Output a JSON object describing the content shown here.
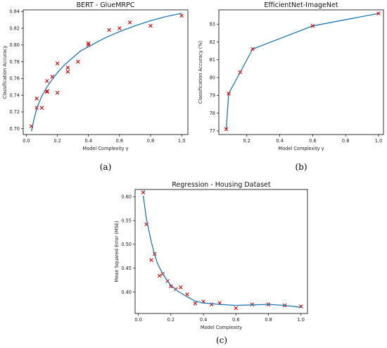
{
  "chart_data": [
    {
      "type": "scatter",
      "panel_label": "(a)",
      "title": "BERT - GlueMRPC",
      "xlabel": "Model Complexity γ",
      "ylabel": "Classification Accuracy",
      "xlim": [
        -0.02,
        1.04
      ],
      "ylim": [
        0.693,
        0.842
      ],
      "xticks": [
        "0.0",
        "0.2",
        "0.4",
        "0.6",
        "0.8",
        "1.0"
      ],
      "yticks": [
        "0.70",
        "0.72",
        "0.74",
        "0.76",
        "0.78",
        "0.80",
        "0.82",
        "0.84"
      ],
      "grid": false,
      "series": [
        {
          "marker": "x",
          "color": "#e00000",
          "points": [
            [
              0.033,
              0.703
            ],
            [
              0.067,
              0.725
            ],
            [
              0.067,
              0.736
            ],
            [
              0.1,
              0.725
            ],
            [
              0.133,
              0.744
            ],
            [
              0.133,
              0.745
            ],
            [
              0.133,
              0.757
            ],
            [
              0.167,
              0.762
            ],
            [
              0.2,
              0.743
            ],
            [
              0.2,
              0.778
            ],
            [
              0.267,
              0.768
            ],
            [
              0.267,
              0.773
            ],
            [
              0.333,
              0.78
            ],
            [
              0.4,
              0.8
            ],
            [
              0.4,
              0.802
            ],
            [
              0.533,
              0.818
            ],
            [
              0.6,
              0.82
            ],
            [
              0.667,
              0.827
            ],
            [
              0.8,
              0.823
            ],
            [
              1.0,
              0.835
            ]
          ]
        },
        {
          "line": true,
          "color": "#1f77b4",
          "points": [
            [
              0.033,
              0.697
            ],
            [
              0.05,
              0.712
            ],
            [
              0.07,
              0.726
            ],
            [
              0.1,
              0.739
            ],
            [
              0.133,
              0.75
            ],
            [
              0.167,
              0.759
            ],
            [
              0.2,
              0.767
            ],
            [
              0.25,
              0.777
            ],
            [
              0.3,
              0.785
            ],
            [
              0.35,
              0.793
            ],
            [
              0.4,
              0.798
            ],
            [
              0.5,
              0.808
            ],
            [
              0.6,
              0.816
            ],
            [
              0.7,
              0.823
            ],
            [
              0.8,
              0.829
            ],
            [
              0.9,
              0.834
            ],
            [
              1.0,
              0.838
            ]
          ]
        }
      ]
    },
    {
      "type": "line",
      "panel_label": "(b)",
      "title": "EfficientNet-ImageNet",
      "xlabel": "Model Complexity γ",
      "ylabel": "Classification Accuracy (%)",
      "xlim": [
        0.03,
        1.03
      ],
      "ylim": [
        76.8,
        83.8
      ],
      "xticks": [
        "0.2",
        "0.4",
        "0.6",
        "0.8",
        "1.0"
      ],
      "yticks": [
        "77",
        "78",
        "79",
        "80",
        "81",
        "82",
        "83"
      ],
      "grid": false,
      "series": [
        {
          "line": true,
          "marker": "x",
          "color": "#1f77b4",
          "marker_color": "#e00000",
          "points": [
            [
              0.075,
              77.1
            ],
            [
              0.09,
              79.1
            ],
            [
              0.16,
              80.3
            ],
            [
              0.235,
              81.6
            ],
            [
              0.6,
              82.9
            ],
            [
              1.0,
              83.6
            ]
          ]
        }
      ]
    },
    {
      "type": "scatter",
      "panel_label": "(c)",
      "title": "Regression - Housing Dataset",
      "xlabel": "Model Complexity",
      "ylabel": "Mean Squared Error (MSE)",
      "xlim": [
        -0.02,
        1.04
      ],
      "ylim": [
        0.355,
        0.615
      ],
      "xticks": [
        "0.0",
        "0.2",
        "0.4",
        "0.6",
        "0.8",
        "1.0"
      ],
      "yticks": [
        "0.40",
        "0.45",
        "0.50",
        "0.55",
        "0.60"
      ],
      "grid": false,
      "series": [
        {
          "marker": "x",
          "color": "#e00000",
          "points": [
            [
              0.03,
              0.609
            ],
            [
              0.05,
              0.542
            ],
            [
              0.08,
              0.467
            ],
            [
              0.1,
              0.48
            ],
            [
              0.13,
              0.434
            ],
            [
              0.15,
              0.438
            ],
            [
              0.18,
              0.423
            ],
            [
              0.2,
              0.412
            ],
            [
              0.23,
              0.406
            ],
            [
              0.26,
              0.41
            ],
            [
              0.3,
              0.395
            ],
            [
              0.35,
              0.376
            ],
            [
              0.4,
              0.38
            ],
            [
              0.45,
              0.374
            ],
            [
              0.5,
              0.377
            ],
            [
              0.6,
              0.366
            ],
            [
              0.7,
              0.374
            ],
            [
              0.8,
              0.374
            ],
            [
              0.9,
              0.372
            ],
            [
              1.0,
              0.37
            ]
          ]
        },
        {
          "line": true,
          "color": "#1f77b4",
          "points": [
            [
              0.03,
              0.602
            ],
            [
              0.05,
              0.552
            ],
            [
              0.08,
              0.505
            ],
            [
              0.1,
              0.478
            ],
            [
              0.12,
              0.458
            ],
            [
              0.15,
              0.438
            ],
            [
              0.18,
              0.423
            ],
            [
              0.2,
              0.414
            ],
            [
              0.25,
              0.4
            ],
            [
              0.3,
              0.39
            ],
            [
              0.35,
              0.381
            ],
            [
              0.4,
              0.377
            ],
            [
              0.5,
              0.374
            ],
            [
              0.6,
              0.372
            ],
            [
              0.7,
              0.373
            ],
            [
              0.8,
              0.374
            ],
            [
              0.9,
              0.372
            ],
            [
              1.0,
              0.368
            ]
          ]
        }
      ]
    }
  ]
}
